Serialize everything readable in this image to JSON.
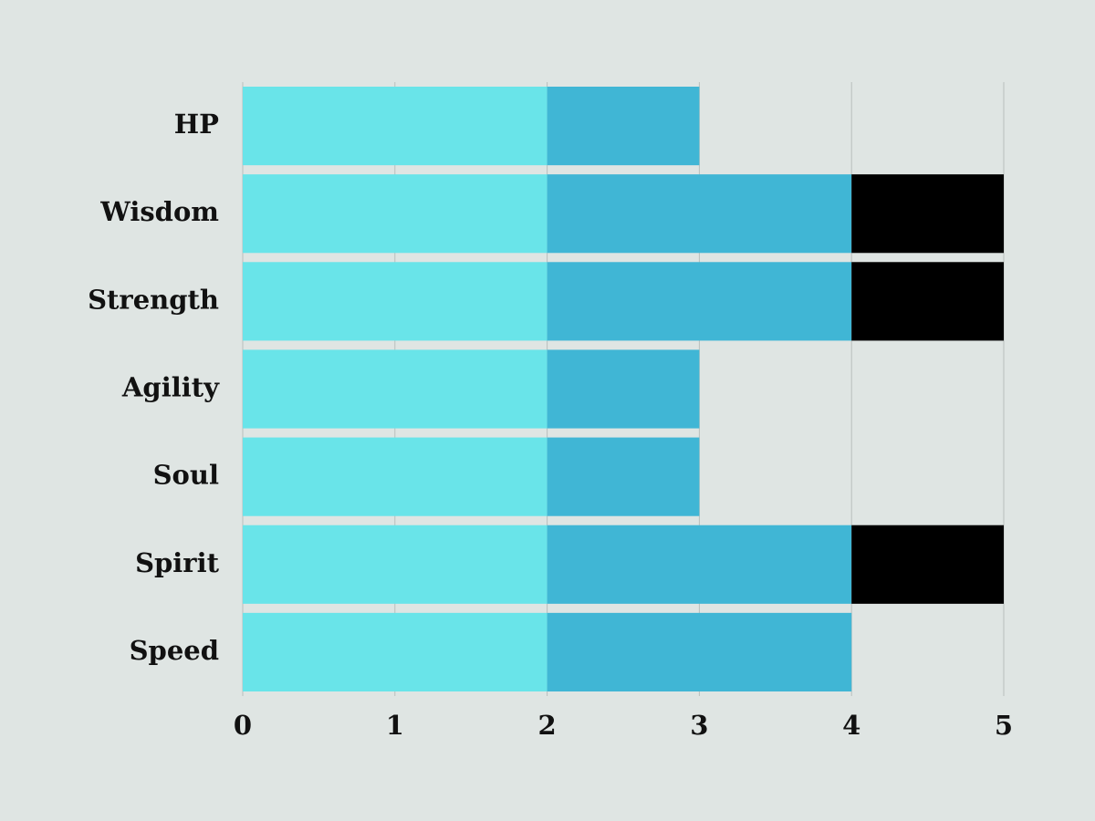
{
  "chart_data": {
    "type": "stacked-bar-horizontal",
    "categories": [
      "HP",
      "Wisdom",
      "Strength",
      "Agility",
      "Soul",
      "Spirit",
      "Speed"
    ],
    "series": [
      {
        "color": "#69e4e9",
        "values": [
          2,
          2,
          2,
          2,
          2,
          2,
          2
        ]
      },
      {
        "color": "#40b6d5",
        "values": [
          1,
          2,
          2,
          1,
          1,
          2,
          2
        ]
      },
      {
        "color": "#000000",
        "values": [
          0,
          1,
          1,
          0,
          0,
          1,
          0
        ]
      }
    ],
    "xlim": [
      0,
      5
    ],
    "xticks": [
      0,
      1,
      2,
      3,
      4,
      5
    ],
    "grid": true
  }
}
